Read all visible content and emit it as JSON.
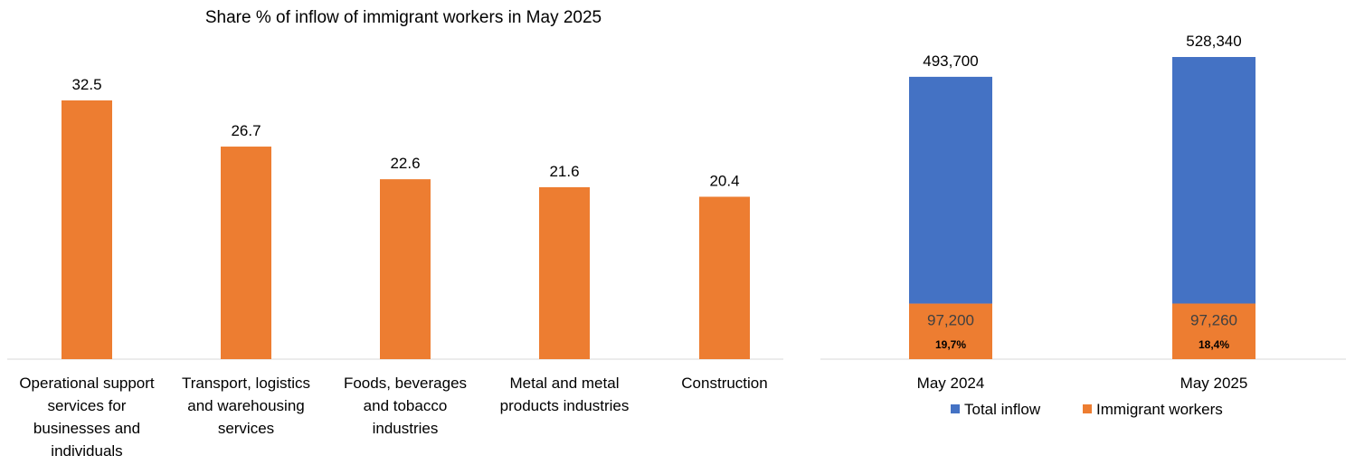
{
  "chart_data": [
    {
      "type": "bar",
      "title": "Share % of inflow of immigrant workers in May 2025",
      "categories": [
        [
          "Operational support",
          "services for",
          "businesses and",
          "individuals"
        ],
        [
          "Transport, logistics",
          "and warehousing",
          "services"
        ],
        [
          "Foods, beverages",
          "and tobacco",
          "industries"
        ],
        [
          "Metal and metal",
          "products industries"
        ],
        [
          "Construction"
        ]
      ],
      "values": [
        32.5,
        26.7,
        22.6,
        21.6,
        20.4
      ],
      "value_labels": [
        "32.5",
        "26.7",
        "22.6",
        "21.6",
        "20.4"
      ],
      "ylim": [
        0,
        35
      ],
      "grid": false,
      "color": "#ED7D31"
    },
    {
      "type": "bar",
      "stacked": true,
      "categories": [
        "May 2024",
        "May 2025"
      ],
      "series": [
        {
          "name": "Immigrant workers",
          "values": [
            97200,
            97260
          ],
          "labels": [
            "97,200",
            "97,260"
          ],
          "color": "#ED7D31"
        },
        {
          "name": "Total inflow",
          "values": [
            493700,
            528340
          ],
          "labels": [
            "493,700",
            "528,340"
          ],
          "color": "#4472C4"
        }
      ],
      "share_labels": [
        "19,7%",
        "18,4%"
      ],
      "ylim": [
        0,
        600000
      ],
      "legend_position": "bottom",
      "legend": [
        {
          "name": "Total inflow",
          "color": "#4472C4"
        },
        {
          "name": "Immigrant workers",
          "color": "#ED7D31"
        }
      ],
      "grid": false
    }
  ]
}
